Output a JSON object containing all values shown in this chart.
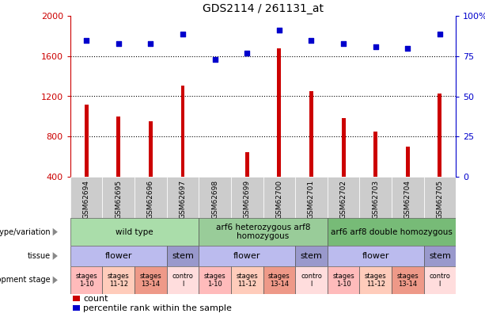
{
  "title": "GDS2114 / 261131_at",
  "samples": [
    "GSM62694",
    "GSM62695",
    "GSM62696",
    "GSM62697",
    "GSM62698",
    "GSM62699",
    "GSM62700",
    "GSM62701",
    "GSM62702",
    "GSM62703",
    "GSM62704",
    "GSM62705"
  ],
  "counts": [
    1120,
    1000,
    950,
    1310,
    380,
    640,
    1680,
    1250,
    980,
    850,
    700,
    1230
  ],
  "percentiles": [
    85,
    83,
    83,
    89,
    73,
    77,
    91,
    85,
    83,
    81,
    80,
    89
  ],
  "bar_color": "#cc0000",
  "dot_color": "#0000cc",
  "ylim_left": [
    400,
    2000
  ],
  "ylim_right": [
    0,
    100
  ],
  "yticks_left": [
    400,
    800,
    1200,
    1600,
    2000
  ],
  "yticks_right": [
    0,
    25,
    50,
    75,
    100
  ],
  "grid_values": [
    800,
    1200,
    1600
  ],
  "genotype_groups": [
    {
      "label": "wild type",
      "start": 0,
      "end": 4,
      "color": "#aaddaa"
    },
    {
      "label": "arf6 heterozygous arf8\nhomozygous",
      "start": 4,
      "end": 8,
      "color": "#99cc99"
    },
    {
      "label": "arf6 arf8 double homozygous",
      "start": 8,
      "end": 12,
      "color": "#77bb77"
    }
  ],
  "tissue_groups": [
    {
      "label": "flower",
      "start": 0,
      "end": 3,
      "color": "#bbbbee"
    },
    {
      "label": "stem",
      "start": 3,
      "end": 4,
      "color": "#9999cc"
    },
    {
      "label": "flower",
      "start": 4,
      "end": 7,
      "color": "#bbbbee"
    },
    {
      "label": "stem",
      "start": 7,
      "end": 8,
      "color": "#9999cc"
    },
    {
      "label": "flower",
      "start": 8,
      "end": 11,
      "color": "#bbbbee"
    },
    {
      "label": "stem",
      "start": 11,
      "end": 12,
      "color": "#9999cc"
    }
  ],
  "stage_groups": [
    {
      "label": "stages\n1-10",
      "start": 0,
      "end": 1,
      "color": "#ffbbbb"
    },
    {
      "label": "stages\n11-12",
      "start": 1,
      "end": 2,
      "color": "#ffccbb"
    },
    {
      "label": "stages\n13-14",
      "start": 2,
      "end": 3,
      "color": "#ee9988"
    },
    {
      "label": "contro\nl",
      "start": 3,
      "end": 4,
      "color": "#ffdddd"
    },
    {
      "label": "stages\n1-10",
      "start": 4,
      "end": 5,
      "color": "#ffbbbb"
    },
    {
      "label": "stages\n11-12",
      "start": 5,
      "end": 6,
      "color": "#ffccbb"
    },
    {
      "label": "stages\n13-14",
      "start": 6,
      "end": 7,
      "color": "#ee9988"
    },
    {
      "label": "contro\nl",
      "start": 7,
      "end": 8,
      "color": "#ffdddd"
    },
    {
      "label": "stages\n1-10",
      "start": 8,
      "end": 9,
      "color": "#ffbbbb"
    },
    {
      "label": "stages\n11-12",
      "start": 9,
      "end": 10,
      "color": "#ffccbb"
    },
    {
      "label": "stages\n13-14",
      "start": 10,
      "end": 11,
      "color": "#ee9988"
    },
    {
      "label": "contro\nl",
      "start": 11,
      "end": 12,
      "color": "#ffdddd"
    }
  ],
  "row_labels": [
    "genotype/variation",
    "tissue",
    "development stage"
  ],
  "legend_items": [
    {
      "label": "count",
      "color": "#cc0000"
    },
    {
      "label": "percentile rank within the sample",
      "color": "#0000cc"
    }
  ],
  "sample_area_bg": "#cccccc",
  "xlabel_color": "#cc0000",
  "ylabel_right_color": "#0000cc",
  "bar_width": 0.12
}
